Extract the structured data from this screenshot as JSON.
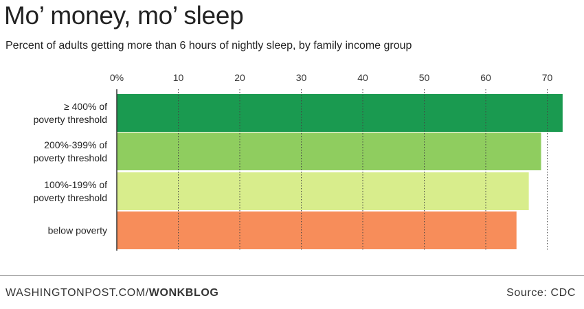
{
  "header": {
    "title": "Mo’ money, mo’ sleep",
    "subtitle": "Percent of adults getting more than 6 hours of nightly sleep, by family income group"
  },
  "footer": {
    "site": "WASHINGTONPOST.COM/",
    "brand": "WONKBLOG",
    "source": "Source: CDC"
  },
  "chart_data": {
    "type": "bar",
    "orientation": "horizontal",
    "title": "Mo’ money, mo’ sleep",
    "subtitle": "Percent of adults getting more than 6 hours of nightly sleep, by family income group",
    "xlabel": "",
    "ylabel": "",
    "xlim": [
      0,
      72
    ],
    "x_ticks": [
      0,
      10,
      20,
      30,
      40,
      50,
      60,
      70
    ],
    "x_tick_labels": [
      "0%",
      "10",
      "20",
      "30",
      "40",
      "50",
      "60",
      "70"
    ],
    "grid": true,
    "axis_position": "top",
    "categories": [
      [
        "≥ 400% of",
        "poverty threshold"
      ],
      [
        "200%-399% of",
        "poverty threshold"
      ],
      [
        "100%-199% of",
        "poverty threshold"
      ],
      [
        "below poverty"
      ]
    ],
    "values": [
      72.5,
      69,
      67,
      65
    ],
    "colors": [
      "#1a9a50",
      "#8fcd5f",
      "#d8ed8c",
      "#f78d5a"
    ]
  }
}
